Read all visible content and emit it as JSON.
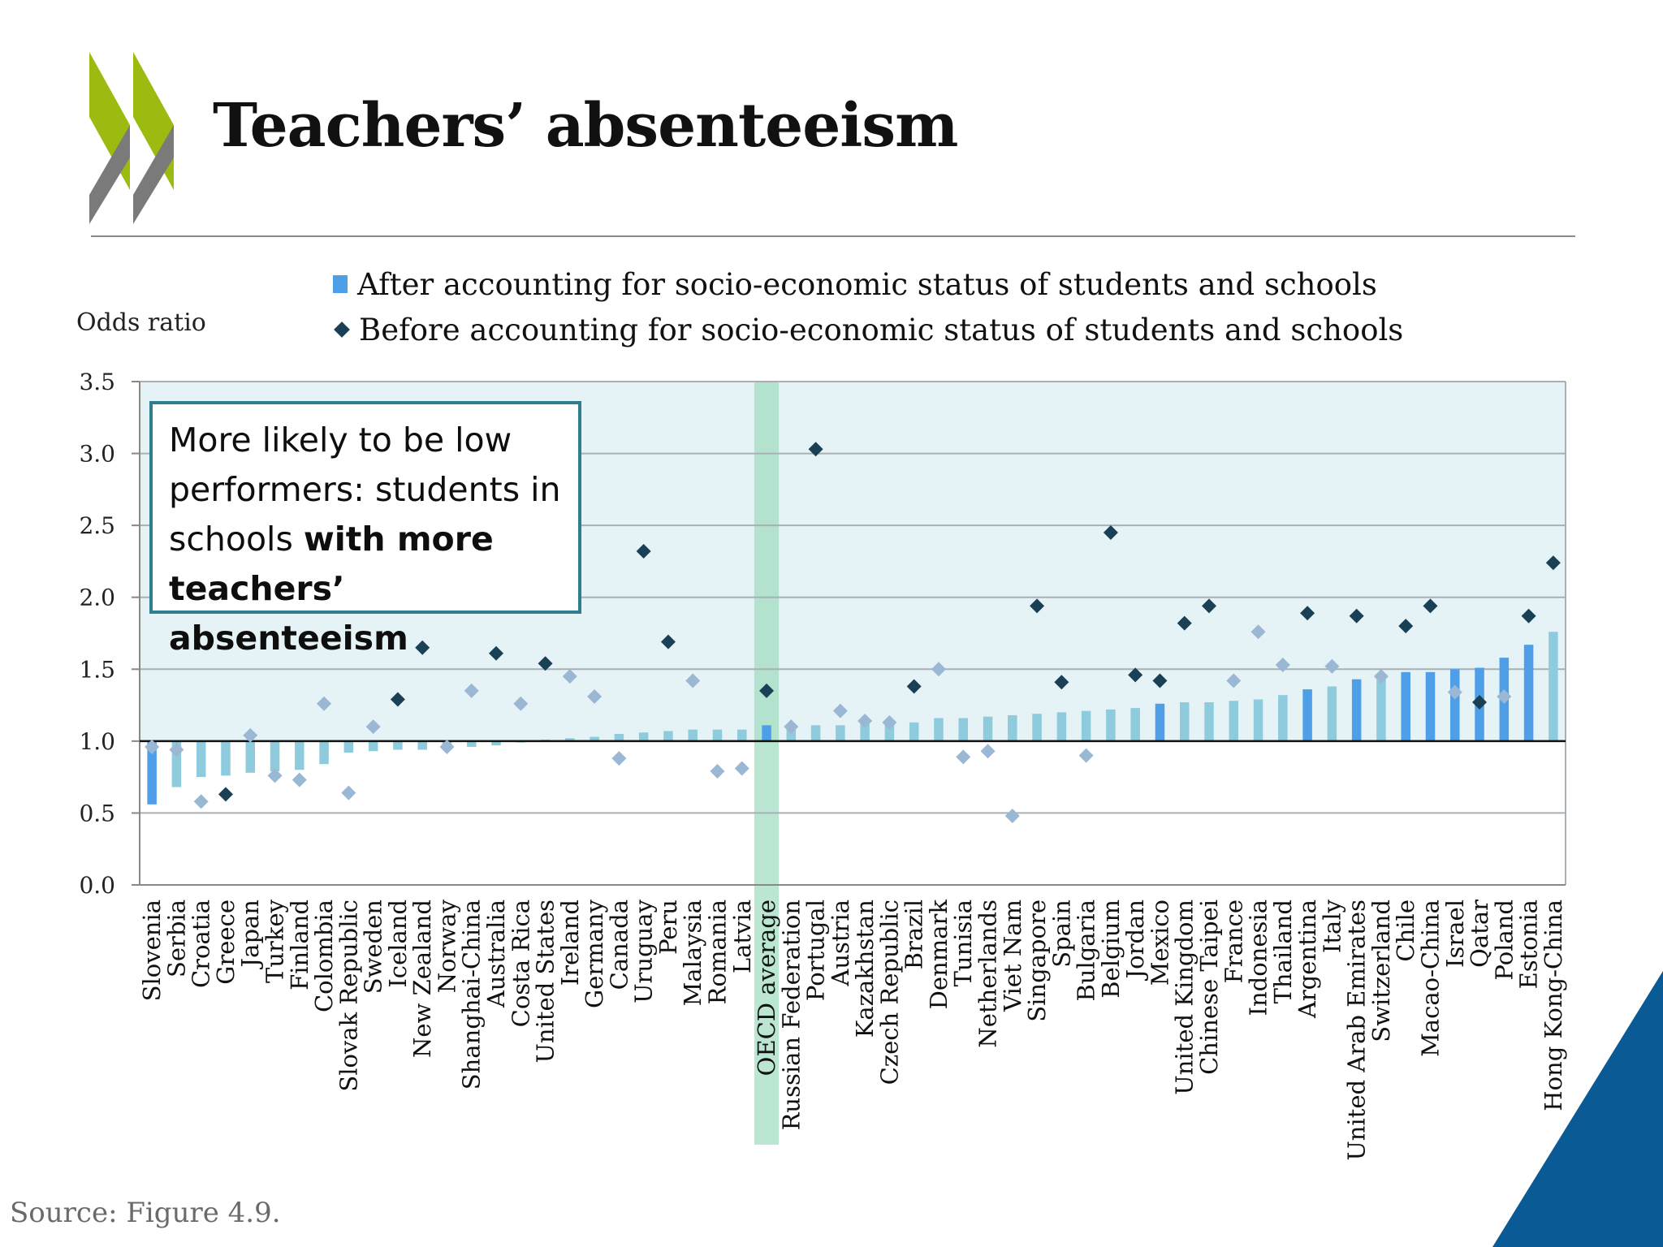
{
  "slide": {
    "title": "Teachers’ absenteeism",
    "source": "Source: Figure 4.9."
  },
  "callout": {
    "text_plain": "More likely to be low performers: students in schools ",
    "text_bold": "with more teachers’ absenteeism"
  },
  "colors": {
    "bar_significant": "#4f9ee8",
    "bar_not_significant": "#8ecbdc",
    "diamond_significant": "#1a4055",
    "diamond_not_significant": "#9ab7d4",
    "oecd_highlight": "#9cdcbf",
    "logo_green": "#9bbb10",
    "logo_gray": "#7a7a7a",
    "corner_blue": "#0a5b95"
  },
  "chart_data": {
    "type": "bar",
    "ylabel": "Odds ratio",
    "ylim": [
      0,
      3.5
    ],
    "yticks": [
      "0.0",
      "0.5",
      "1.0",
      "1.5",
      "2.0",
      "2.5",
      "3.0",
      "3.5"
    ],
    "baseline": 1.0,
    "highlight_category": "OECD average",
    "legend": {
      "after": "After accounting for socio-economic status of students and schools",
      "before": "Before accounting for socio-economic status of students and schools"
    },
    "categories": [
      "Slovenia",
      "Serbia",
      "Croatia",
      "Greece",
      "Japan",
      "Turkey",
      "Finland",
      "Colombia",
      "Slovak Republic",
      "Sweden",
      "Iceland",
      "New Zealand",
      "Norway",
      "Shanghai-China",
      "Australia",
      "Costa Rica",
      "United States",
      "Ireland",
      "Germany",
      "Canada",
      "Uruguay",
      "Peru",
      "Malaysia",
      "Romania",
      "Latvia",
      "OECD average",
      "Russian Federation",
      "Portugal",
      "Austria",
      "Kazakhstan",
      "Czech Republic",
      "Brazil",
      "Denmark",
      "Tunisia",
      "Netherlands",
      "Viet Nam",
      "Singapore",
      "Spain",
      "Bulgaria",
      "Belgium",
      "Jordan",
      "Mexico",
      "United Kingdom",
      "Chinese Taipei",
      "France",
      "Indonesia",
      "Thailand",
      "Argentina",
      "Italy",
      "United Arab Emirates",
      "Switzerland",
      "Chile",
      "Macao-China",
      "Israel",
      "Qatar",
      "Poland",
      "Estonia",
      "Hong Kong-China"
    ],
    "series": [
      {
        "name": "After accounting for socio-economic status of students and schools",
        "values": [
          0.56,
          0.68,
          0.75,
          0.76,
          0.78,
          0.79,
          0.8,
          0.84,
          0.92,
          0.93,
          0.94,
          0.94,
          0.95,
          0.96,
          0.97,
          0.99,
          1.01,
          1.02,
          1.03,
          1.05,
          1.06,
          1.07,
          1.08,
          1.08,
          1.08,
          1.11,
          1.11,
          1.11,
          1.11,
          1.12,
          1.12,
          1.13,
          1.16,
          1.16,
          1.17,
          1.18,
          1.19,
          1.2,
          1.21,
          1.22,
          1.23,
          1.26,
          1.27,
          1.27,
          1.28,
          1.29,
          1.32,
          1.36,
          1.38,
          1.43,
          1.46,
          1.48,
          1.48,
          1.5,
          1.51,
          1.58,
          1.67,
          1.76
        ],
        "significant": [
          true,
          false,
          false,
          false,
          false,
          false,
          false,
          false,
          false,
          false,
          false,
          false,
          false,
          false,
          false,
          false,
          false,
          false,
          false,
          false,
          false,
          false,
          false,
          false,
          false,
          true,
          false,
          false,
          false,
          false,
          false,
          false,
          false,
          false,
          false,
          false,
          false,
          false,
          false,
          false,
          false,
          true,
          false,
          false,
          false,
          false,
          false,
          true,
          false,
          true,
          false,
          true,
          true,
          true,
          true,
          true,
          true,
          false
        ]
      },
      {
        "name": "Before accounting for socio-economic status of students and schools",
        "values": [
          0.96,
          0.94,
          0.58,
          0.63,
          1.04,
          0.76,
          0.73,
          1.26,
          0.64,
          1.1,
          1.29,
          1.65,
          0.96,
          1.35,
          1.61,
          1.26,
          1.54,
          1.45,
          1.31,
          0.88,
          2.32,
          1.69,
          1.42,
          0.79,
          0.81,
          1.35,
          1.1,
          3.03,
          1.21,
          1.14,
          1.13,
          1.38,
          1.5,
          0.89,
          0.93,
          0.48,
          1.94,
          1.41,
          0.9,
          2.45,
          1.46,
          1.42,
          1.82,
          1.94,
          1.42,
          1.76,
          1.53,
          1.89,
          1.52,
          1.87,
          1.45,
          1.8,
          1.94,
          1.34,
          1.27,
          1.31,
          1.87,
          2.24
        ],
        "significant": [
          false,
          false,
          false,
          true,
          false,
          false,
          false,
          false,
          false,
          false,
          true,
          true,
          false,
          false,
          true,
          false,
          true,
          false,
          false,
          false,
          true,
          true,
          false,
          false,
          false,
          true,
          false,
          true,
          false,
          false,
          false,
          true,
          false,
          false,
          false,
          false,
          true,
          true,
          false,
          true,
          true,
          true,
          true,
          true,
          false,
          false,
          false,
          true,
          false,
          true,
          false,
          true,
          true,
          false,
          true,
          false,
          true,
          true
        ]
      }
    ]
  }
}
